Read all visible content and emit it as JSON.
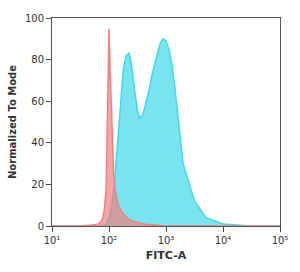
{
  "chart_data": {
    "type": "area",
    "xlabel": "FITC-A",
    "ylabel": "Normalized To Mode",
    "log": "x",
    "grid": false,
    "xlim": [
      10,
      100000
    ],
    "xticks": [
      {
        "value": 10,
        "label": "10¹"
      },
      {
        "value": 100,
        "label": "10²"
      },
      {
        "value": 1000,
        "label": "10³"
      },
      {
        "value": 10000,
        "label": "10⁴"
      },
      {
        "value": 100000,
        "label": "10⁵"
      }
    ],
    "ylim": [
      0,
      100
    ],
    "yticks": [
      0,
      20,
      40,
      60,
      80,
      100
    ],
    "series": [
      {
        "color": "#40d8e8",
        "x": [
          10,
          31.62278,
          63.09573,
          79.43282,
          89.12509,
          100,
          112.2018,
          125.8925,
          141.2538,
          158.4893,
          177.8279,
          199.5262,
          223.8721,
          239.8833,
          263.0268,
          288.4032,
          316.2278,
          346.7369,
          380.1894,
          416.8694,
          457.0882,
          501.1872,
          562.3413,
          630.9573,
          707.9458,
          794.3282,
          891.2509,
          1000,
          1122.018,
          1258.925,
          1412.538,
          1584.893,
          1995.262,
          3162.278,
          5011.872,
          10000,
          31622.78,
          100000
        ],
        "values": [
          0,
          0,
          0,
          0.5,
          1,
          4,
          10,
          22,
          40,
          60,
          75,
          82,
          83,
          80,
          72,
          62,
          55,
          52,
          53,
          56,
          60,
          65,
          72,
          78,
          83,
          88,
          90,
          89,
          85,
          78,
          68,
          55,
          30,
          12,
          4,
          1,
          0,
          0
        ]
      },
      {
        "color": "#f08080",
        "x": [
          10,
          31.62278,
          50.11872,
          66.06934,
          75.85776,
          83.17638,
          89.12509,
          95.49926,
          100,
          104.7129,
          112.2018,
          120.2264,
          131.8257,
          144.544,
          165.9587,
          190.5461,
          223.8721,
          281.8383,
          398.1072,
          630.9573,
          1000,
          3162.278,
          100000
        ],
        "values": [
          0,
          0,
          0.5,
          1,
          3,
          8,
          18,
          55,
          95,
          75,
          45,
          25,
          15,
          10,
          7,
          5,
          3,
          2,
          1,
          0.5,
          0,
          0,
          0
        ]
      }
    ]
  }
}
